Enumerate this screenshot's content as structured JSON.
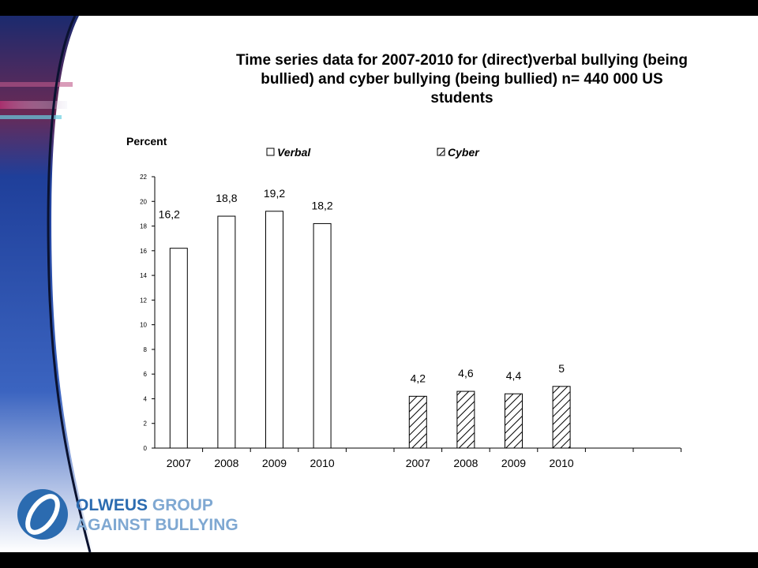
{
  "title": "Time series data for 2007-2010 for (direct)verbal bullying (being bullied) and cyber bullying (being bullied) n= 440 000 US students",
  "chart_data": {
    "type": "bar",
    "title": "Time series data for 2007-2010 for (direct)verbal bullying (being bullied) and cyber bullying (being bullied) n= 440 000 US students",
    "ylabel": "Percent",
    "xlabel": "",
    "ylim": [
      0,
      22
    ],
    "yticks": [
      "0",
      "2",
      "4",
      "6",
      "8",
      "10",
      "12",
      "14",
      "16",
      "18",
      "20",
      "22"
    ],
    "grid": false,
    "legend_position": "top",
    "series": [
      {
        "name": "Verbal",
        "fill": "white",
        "categories": [
          "2007",
          "2008",
          "2009",
          "2010"
        ],
        "values": [
          16.2,
          18.8,
          19.2,
          18.2
        ],
        "labels": [
          "16,2",
          "18,8",
          "19,2",
          "18,2"
        ]
      },
      {
        "name": "Cyber",
        "fill": "hatched",
        "categories": [
          "2007",
          "2008",
          "2009",
          "2010"
        ],
        "values": [
          4.2,
          4.6,
          4.4,
          5.0
        ],
        "labels": [
          "4,2",
          "4,6",
          "4,4",
          "5"
        ]
      }
    ]
  },
  "logo": {
    "line1_dark": "OLWEUS",
    "line1_light": "GROUP",
    "line2": "AGAINST BULLYING"
  },
  "colors": {
    "background": "#ffffff",
    "bar_outline": "#000000",
    "logo_dark": "#2b6bb0",
    "logo_light": "#7fa8d2"
  }
}
